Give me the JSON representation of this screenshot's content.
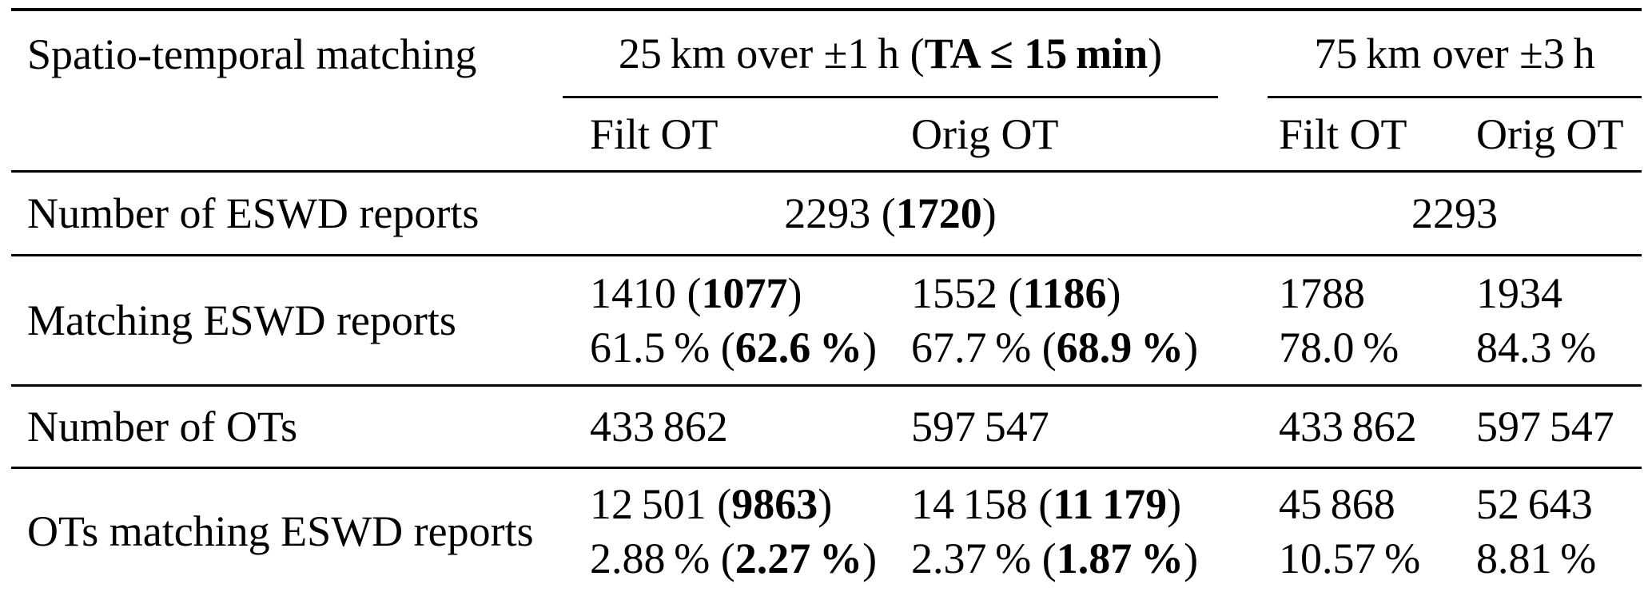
{
  "colors": {
    "text": "#000000",
    "background": "#ffffff",
    "rule": "#000000"
  },
  "table": {
    "corner_header": "Spatio-temporal matching",
    "groups": [
      {
        "title_segments": [
          {
            "t": "25 km over ±1 h (",
            "b": false
          },
          {
            "t": "TA ≤ 15 min",
            "b": true
          },
          {
            "t": ")",
            "b": false
          }
        ],
        "subcols": [
          "Filt OT",
          "Orig OT"
        ]
      },
      {
        "title_segments": [
          {
            "t": "75 km over ±3 h",
            "b": false
          }
        ],
        "subcols": [
          "Filt OT",
          "Orig OT"
        ]
      }
    ],
    "rows": [
      {
        "label": "Number of ESWD reports",
        "span_cells": [
          {
            "lines": [
              [
                {
                  "t": "2293 (",
                  "b": false
                },
                {
                  "t": "1720",
                  "b": true
                },
                {
                  "t": ")",
                  "b": false
                }
              ]
            ]
          },
          {
            "lines": [
              [
                {
                  "t": "2293",
                  "b": false
                }
              ]
            ]
          }
        ]
      },
      {
        "label": "Matching ESWD reports",
        "cells": [
          {
            "lines": [
              [
                {
                  "t": "1410 (",
                  "b": false
                },
                {
                  "t": "1077",
                  "b": true
                },
                {
                  "t": ")",
                  "b": false
                }
              ],
              [
                {
                  "t": "61.5 % (",
                  "b": false
                },
                {
                  "t": "62.6 %",
                  "b": true
                },
                {
                  "t": ")",
                  "b": false
                }
              ]
            ]
          },
          {
            "lines": [
              [
                {
                  "t": "1552 (",
                  "b": false
                },
                {
                  "t": "1186",
                  "b": true
                },
                {
                  "t": ")",
                  "b": false
                }
              ],
              [
                {
                  "t": "67.7 % (",
                  "b": false
                },
                {
                  "t": "68.9 %",
                  "b": true
                },
                {
                  "t": ")",
                  "b": false
                }
              ]
            ]
          },
          {
            "lines": [
              [
                {
                  "t": "1788",
                  "b": false
                }
              ],
              [
                {
                  "t": "78.0 %",
                  "b": false
                }
              ]
            ]
          },
          {
            "lines": [
              [
                {
                  "t": "1934",
                  "b": false
                }
              ],
              [
                {
                  "t": "84.3 %",
                  "b": false
                }
              ]
            ]
          }
        ]
      },
      {
        "label": "Number of OTs",
        "cells": [
          {
            "lines": [
              [
                {
                  "t": "433 862",
                  "b": false
                }
              ]
            ]
          },
          {
            "lines": [
              [
                {
                  "t": "597 547",
                  "b": false
                }
              ]
            ]
          },
          {
            "lines": [
              [
                {
                  "t": "433 862",
                  "b": false
                }
              ]
            ]
          },
          {
            "lines": [
              [
                {
                  "t": "597 547",
                  "b": false
                }
              ]
            ]
          }
        ]
      },
      {
        "label": "OTs matching ESWD reports",
        "cells": [
          {
            "lines": [
              [
                {
                  "t": "12 501 (",
                  "b": false
                },
                {
                  "t": "9863",
                  "b": true
                },
                {
                  "t": ")",
                  "b": false
                }
              ],
              [
                {
                  "t": "2.88 % (",
                  "b": false
                },
                {
                  "t": "2.27 %",
                  "b": true
                },
                {
                  "t": ")",
                  "b": false
                }
              ]
            ]
          },
          {
            "lines": [
              [
                {
                  "t": "14 158 (",
                  "b": false
                },
                {
                  "t": "11 179",
                  "b": true
                },
                {
                  "t": ")",
                  "b": false
                }
              ],
              [
                {
                  "t": "2.37 % (",
                  "b": false
                },
                {
                  "t": "1.87 %",
                  "b": true
                },
                {
                  "t": ")",
                  "b": false
                }
              ]
            ]
          },
          {
            "lines": [
              [
                {
                  "t": "45 868",
                  "b": false
                }
              ],
              [
                {
                  "t": "10.57 %",
                  "b": false
                }
              ]
            ]
          },
          {
            "lines": [
              [
                {
                  "t": "52 643",
                  "b": false
                }
              ],
              [
                {
                  "t": "8.81 %",
                  "b": false
                }
              ]
            ]
          }
        ]
      }
    ]
  }
}
